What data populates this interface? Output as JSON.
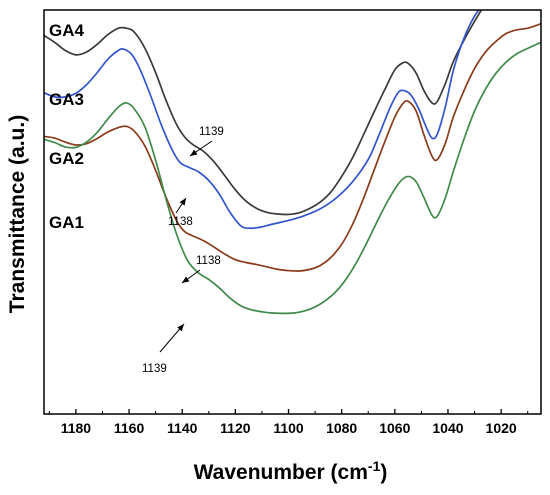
{
  "chart_data": {
    "type": "line",
    "xlabel": "Wavenumber (cm",
    "xlabel_superscript": "-1",
    "xlabel_suffix": ")",
    "ylabel": "Transmittance (a.u.)",
    "xlim": [
      1192,
      1005
    ],
    "ylim": [
      0,
      1
    ],
    "x_reversed": true,
    "y_ticks_shown": false,
    "grid": false,
    "x_ticks": [
      1180,
      1160,
      1140,
      1120,
      1100,
      1080,
      1060,
      1040,
      1020
    ],
    "series": [
      {
        "name": "GA4",
        "color": "#3a3a3a",
        "points": [
          [
            1192,
            0.937
          ],
          [
            1188,
            0.92
          ],
          [
            1184,
            0.9
          ],
          [
            1180,
            0.889
          ],
          [
            1176,
            0.896
          ],
          [
            1172,
            0.915
          ],
          [
            1168,
            0.939
          ],
          [
            1164,
            0.955
          ],
          [
            1161,
            0.955
          ],
          [
            1158,
            0.945
          ],
          [
            1154,
            0.905
          ],
          [
            1150,
            0.845
          ],
          [
            1146,
            0.775
          ],
          [
            1142,
            0.715
          ],
          [
            1139,
            0.685
          ],
          [
            1136,
            0.667
          ],
          [
            1132,
            0.65
          ],
          [
            1128,
            0.624
          ],
          [
            1124,
            0.59
          ],
          [
            1120,
            0.555
          ],
          [
            1116,
            0.527
          ],
          [
            1112,
            0.509
          ],
          [
            1108,
            0.499
          ],
          [
            1104,
            0.495
          ],
          [
            1100,
            0.494
          ],
          [
            1096,
            0.498
          ],
          [
            1092,
            0.509
          ],
          [
            1088,
            0.525
          ],
          [
            1084,
            0.55
          ],
          [
            1080,
            0.588
          ],
          [
            1076,
            0.633
          ],
          [
            1072,
            0.688
          ],
          [
            1068,
            0.745
          ],
          [
            1064,
            0.8
          ],
          [
            1060,
            0.852
          ],
          [
            1057,
            0.869
          ],
          [
            1055,
            0.868
          ],
          [
            1052,
            0.844
          ],
          [
            1049,
            0.8
          ],
          [
            1046,
            0.77
          ],
          [
            1044,
            0.774
          ],
          [
            1041,
            0.818
          ],
          [
            1038,
            0.872
          ],
          [
            1034,
            0.925
          ],
          [
            1030,
            0.972
          ],
          [
            1026,
            1.015
          ]
        ]
      },
      {
        "name": "GA3",
        "color": "#3355cc",
        "points": [
          [
            1192,
            0.795
          ],
          [
            1188,
            0.785
          ],
          [
            1184,
            0.785
          ],
          [
            1180,
            0.794
          ],
          [
            1176,
            0.815
          ],
          [
            1172,
            0.845
          ],
          [
            1168,
            0.878
          ],
          [
            1164,
            0.9
          ],
          [
            1162,
            0.903
          ],
          [
            1159,
            0.89
          ],
          [
            1156,
            0.855
          ],
          [
            1152,
            0.79
          ],
          [
            1148,
            0.718
          ],
          [
            1144,
            0.657
          ],
          [
            1141,
            0.624
          ],
          [
            1138,
            0.612
          ],
          [
            1134,
            0.6
          ],
          [
            1130,
            0.578
          ],
          [
            1126,
            0.544
          ],
          [
            1122,
            0.499
          ],
          [
            1118,
            0.466
          ],
          [
            1115,
            0.46
          ],
          [
            1111,
            0.462
          ],
          [
            1106,
            0.47
          ],
          [
            1100,
            0.479
          ],
          [
            1094,
            0.491
          ],
          [
            1088,
            0.508
          ],
          [
            1082,
            0.535
          ],
          [
            1076,
            0.574
          ],
          [
            1070,
            0.63
          ],
          [
            1066,
            0.69
          ],
          [
            1062,
            0.755
          ],
          [
            1059,
            0.793
          ],
          [
            1057,
            0.801
          ],
          [
            1054,
            0.79
          ],
          [
            1051,
            0.755
          ],
          [
            1048,
            0.707
          ],
          [
            1046,
            0.683
          ],
          [
            1044,
            0.693
          ],
          [
            1041,
            0.76
          ],
          [
            1038,
            0.85
          ],
          [
            1034,
            0.93
          ],
          [
            1030,
            0.985
          ],
          [
            1026,
            1.02
          ]
        ]
      },
      {
        "name": "GA2",
        "color": "#8b3a1a",
        "points": [
          [
            1192,
            0.687
          ],
          [
            1188,
            0.683
          ],
          [
            1184,
            0.673
          ],
          [
            1180,
            0.666
          ],
          [
            1176,
            0.669
          ],
          [
            1172,
            0.682
          ],
          [
            1168,
            0.698
          ],
          [
            1164,
            0.709
          ],
          [
            1161,
            0.712
          ],
          [
            1158,
            0.7
          ],
          [
            1154,
            0.663
          ],
          [
            1150,
            0.603
          ],
          [
            1146,
            0.535
          ],
          [
            1142,
            0.477
          ],
          [
            1139,
            0.451
          ],
          [
            1136,
            0.441
          ],
          [
            1132,
            0.429
          ],
          [
            1128,
            0.413
          ],
          [
            1124,
            0.396
          ],
          [
            1120,
            0.382
          ],
          [
            1116,
            0.375
          ],
          [
            1112,
            0.37
          ],
          [
            1108,
            0.364
          ],
          [
            1104,
            0.358
          ],
          [
            1100,
            0.355
          ],
          [
            1096,
            0.354
          ],
          [
            1092,
            0.358
          ],
          [
            1088,
            0.368
          ],
          [
            1084,
            0.388
          ],
          [
            1080,
            0.42
          ],
          [
            1076,
            0.468
          ],
          [
            1072,
            0.53
          ],
          [
            1068,
            0.6
          ],
          [
            1064,
            0.67
          ],
          [
            1060,
            0.735
          ],
          [
            1057,
            0.768
          ],
          [
            1055,
            0.774
          ],
          [
            1052,
            0.75
          ],
          [
            1049,
            0.69
          ],
          [
            1046,
            0.638
          ],
          [
            1044,
            0.63
          ],
          [
            1041,
            0.67
          ],
          [
            1038,
            0.735
          ],
          [
            1034,
            0.8
          ],
          [
            1030,
            0.855
          ],
          [
            1026,
            0.895
          ],
          [
            1022,
            0.922
          ],
          [
            1018,
            0.942
          ],
          [
            1014,
            0.951
          ],
          [
            1010,
            0.955
          ],
          [
            1005,
            0.966
          ]
        ]
      },
      {
        "name": "GA1",
        "color": "#3f8a4a",
        "points": [
          [
            1192,
            0.68
          ],
          [
            1188,
            0.672
          ],
          [
            1184,
            0.661
          ],
          [
            1180,
            0.66
          ],
          [
            1176,
            0.673
          ],
          [
            1172,
            0.697
          ],
          [
            1168,
            0.73
          ],
          [
            1164,
            0.76
          ],
          [
            1161,
            0.77
          ],
          [
            1158,
            0.755
          ],
          [
            1154,
            0.71
          ],
          [
            1150,
            0.628
          ],
          [
            1146,
            0.53
          ],
          [
            1142,
            0.443
          ],
          [
            1138,
            0.38
          ],
          [
            1134,
            0.35
          ],
          [
            1130,
            0.333
          ],
          [
            1126,
            0.312
          ],
          [
            1122,
            0.287
          ],
          [
            1118,
            0.268
          ],
          [
            1114,
            0.258
          ],
          [
            1110,
            0.253
          ],
          [
            1106,
            0.25
          ],
          [
            1102,
            0.249
          ],
          [
            1098,
            0.25
          ],
          [
            1094,
            0.255
          ],
          [
            1090,
            0.265
          ],
          [
            1086,
            0.281
          ],
          [
            1082,
            0.304
          ],
          [
            1078,
            0.337
          ],
          [
            1074,
            0.38
          ],
          [
            1070,
            0.431
          ],
          [
            1066,
            0.485
          ],
          [
            1062,
            0.535
          ],
          [
            1058,
            0.575
          ],
          [
            1055,
            0.588
          ],
          [
            1052,
            0.575
          ],
          [
            1049,
            0.535
          ],
          [
            1046,
            0.492
          ],
          [
            1044,
            0.49
          ],
          [
            1041,
            0.535
          ],
          [
            1038,
            0.6
          ],
          [
            1034,
            0.68
          ],
          [
            1030,
            0.75
          ],
          [
            1026,
            0.803
          ],
          [
            1022,
            0.843
          ],
          [
            1018,
            0.872
          ],
          [
            1014,
            0.892
          ],
          [
            1010,
            0.905
          ],
          [
            1005,
            0.92
          ]
        ]
      }
    ],
    "annotations": [
      {
        "text": "1139",
        "series": "GA4"
      },
      {
        "text": "1138",
        "series": "GA3"
      },
      {
        "text": "1138",
        "series": "GA2"
      },
      {
        "text": "1139",
        "series": "GA1"
      }
    ]
  }
}
